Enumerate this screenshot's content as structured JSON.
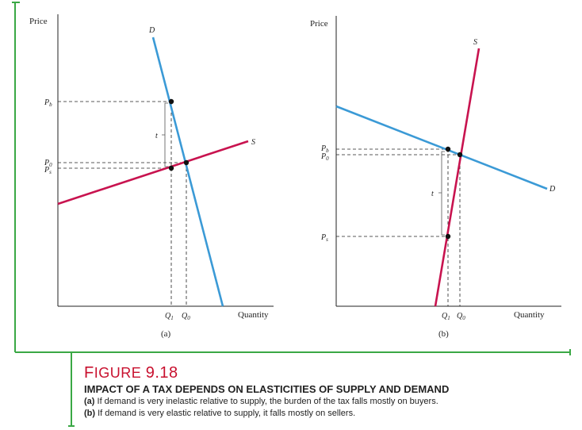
{
  "panel_a": {
    "y_axis_label": "Price",
    "x_axis_label": "Quantity",
    "panel_label": "(a)",
    "demand_label": "D",
    "supply_label": "S",
    "tax_label": "t",
    "price_buyers_label": "P",
    "price_buyers_sub": "b",
    "price_zero_label": "P",
    "price_zero_sub": "0",
    "price_sellers_label": "P",
    "price_sellers_sub": "s",
    "q1_label": "Q",
    "q1_sub": "1",
    "q0_label": "Q",
    "q0_sub": "0"
  },
  "panel_b": {
    "y_axis_label": "Price",
    "x_axis_label": "Quantity",
    "panel_label": "(b)",
    "demand_label": "D",
    "supply_label": "S",
    "tax_label": "t",
    "price_buyers_label": "P",
    "price_buyers_sub": "b",
    "price_zero_label": "P",
    "price_zero_sub": "0",
    "price_sellers_label": "P",
    "price_sellers_sub": "s",
    "q1_label": "Q",
    "q1_sub": "1",
    "q0_label": "Q",
    "q0_sub": "0"
  },
  "caption": {
    "figure_word_first": "F",
    "figure_word_rest": "IGURE",
    "figure_number": "9.18",
    "heading": "IMPACT OF A TAX DEPENDS ON ELASTICITIES OF SUPPLY AND DEMAND",
    "line_a_prefix": "(a)",
    "line_a": "If demand is very inelastic relative to supply, the burden of the tax falls mostly on buyers.",
    "line_b_prefix": "(b)",
    "line_b": "If demand is very elastic relative to supply, it falls mostly on sellers."
  },
  "colors": {
    "demand": "#3b9ad6",
    "supply": "#c8134f",
    "frame": "#3aa845",
    "title_red": "#c8102e",
    "ink": "#222222"
  }
}
